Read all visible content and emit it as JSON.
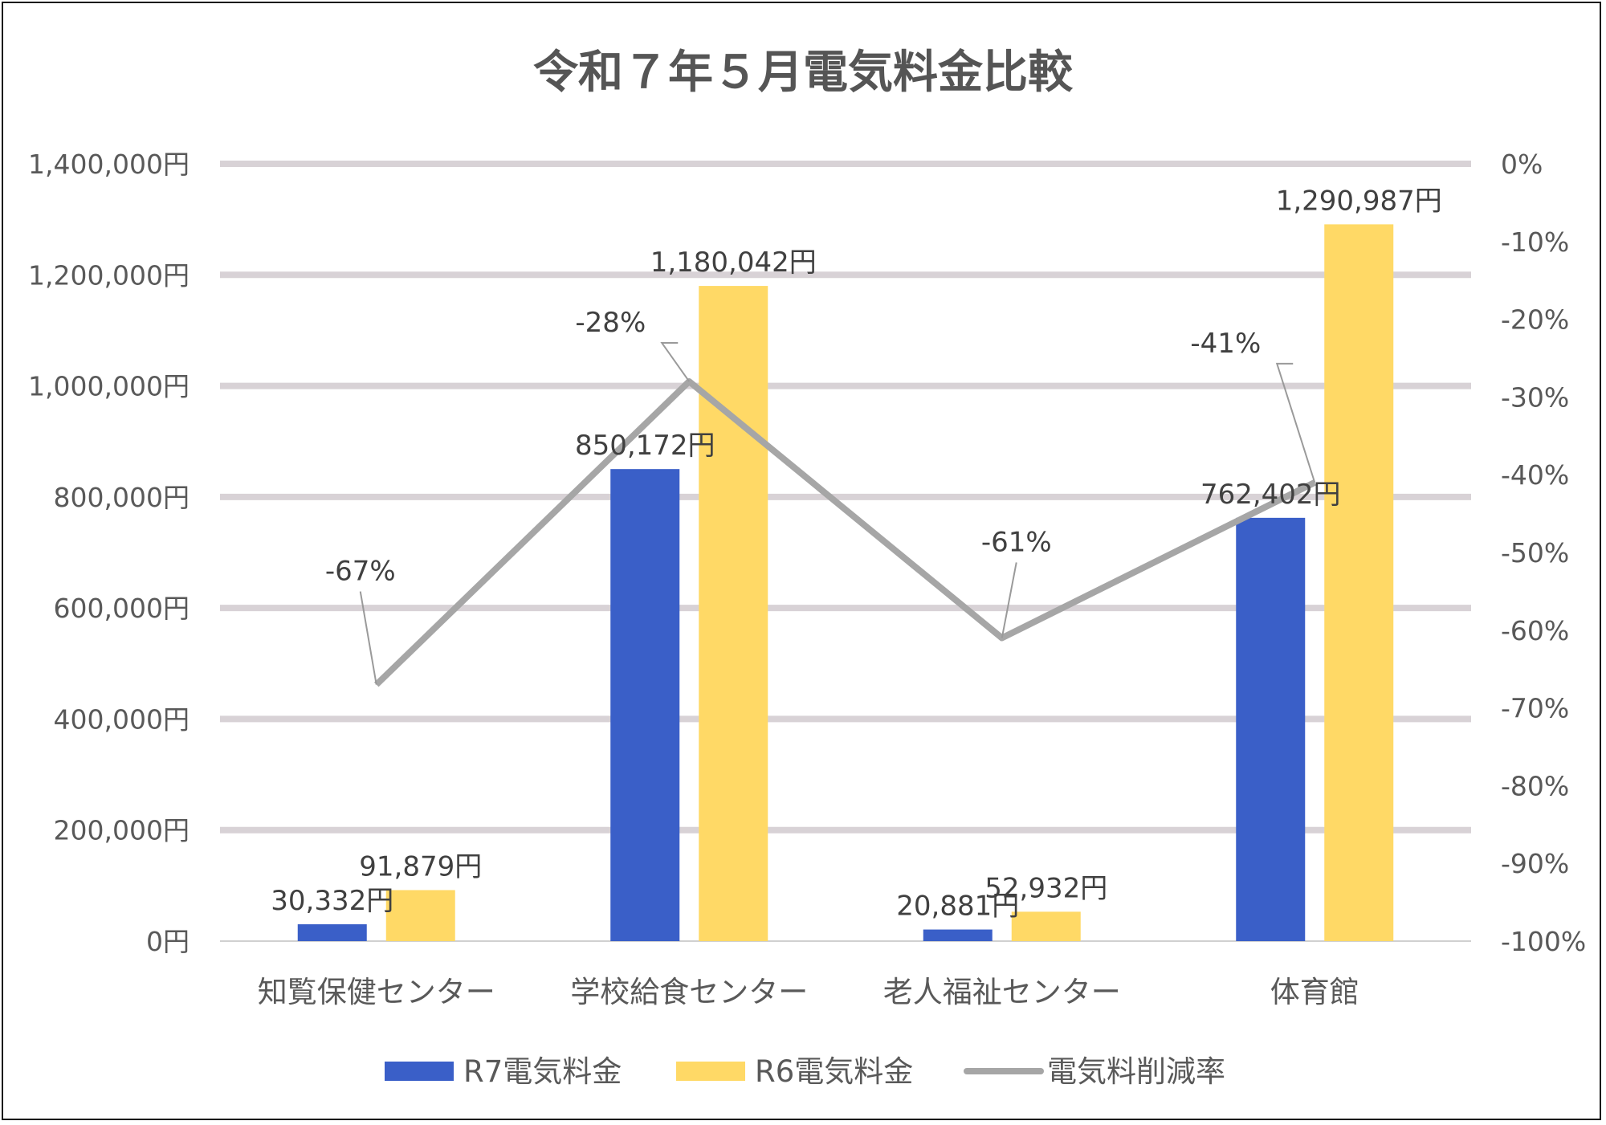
{
  "chart_data": {
    "type": "bar",
    "title": "令和７年５月電気料金比較",
    "categories": [
      "知覧保健センター",
      "学校給食センター",
      "老人福祉センター",
      "体育館"
    ],
    "series": [
      {
        "name": "R7電気料金",
        "type": "bar",
        "axis": "left",
        "color": "#3a5fc8",
        "values": [
          30332,
          850172,
          20881,
          762402
        ],
        "labels": [
          "30,332円",
          "850,172円",
          "20,881円",
          "762,402円"
        ]
      },
      {
        "name": "R6電気料金",
        "type": "bar",
        "axis": "left",
        "color": "#ffd966",
        "values": [
          91879,
          1180042,
          52932,
          1290987
        ],
        "labels": [
          "91,879円",
          "1,180,042円",
          "52,932円",
          "1,290,987円"
        ]
      },
      {
        "name": "電気料削減率",
        "type": "line",
        "axis": "right",
        "color": "#a6a6a6",
        "values": [
          -67,
          -28,
          -61,
          -41
        ],
        "labels": [
          "-67%",
          "-28%",
          "-61%",
          "-41%"
        ]
      }
    ],
    "left_axis": {
      "ylim": [
        0,
        1400000
      ],
      "ticks": [
        0,
        200000,
        400000,
        600000,
        800000,
        1000000,
        1200000,
        1400000
      ],
      "tick_labels": [
        "0円",
        "200,000円",
        "400,000円",
        "600,000円",
        "800,000円",
        "1,000,000円",
        "1,200,000円",
        "1,400,000円"
      ]
    },
    "right_axis": {
      "ylim": [
        -100,
        0
      ],
      "ticks": [
        0,
        -10,
        -20,
        -30,
        -40,
        -50,
        -60,
        -70,
        -80,
        -90,
        -100
      ],
      "tick_labels": [
        "0%",
        "-10%",
        "-20%",
        "-30%",
        "-40%",
        "-50%",
        "-60%",
        "-70%",
        "-80%",
        "-90%",
        "-100%"
      ]
    },
    "grid": true,
    "legend_position": "bottom"
  }
}
